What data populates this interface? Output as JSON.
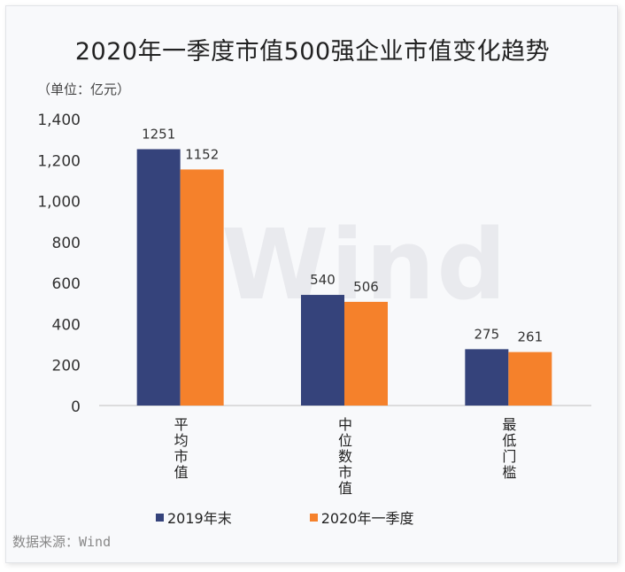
{
  "chart_data": {
    "type": "bar",
    "title": "2020年一季度市值500强企业市值变化趋势",
    "unit_label": "（单位：亿元）",
    "categories": [
      "平均市值",
      "中位数市值",
      "最低门槛"
    ],
    "series": [
      {
        "name": "2019年末",
        "values": [
          1251,
          540,
          275
        ],
        "color": "#35437b"
      },
      {
        "name": "2020年一季度",
        "values": [
          1152,
          506,
          261
        ],
        "color": "#f5812b"
      }
    ],
    "yticks": [
      "0",
      "200",
      "400",
      "600",
      "800",
      "1,000",
      "1,200",
      "1,400"
    ],
    "ylim": [
      0,
      1400
    ],
    "watermark": "Wind"
  },
  "legend": {
    "items": [
      "2019年末",
      "2020年一季度"
    ]
  },
  "source": "数据来源：Wind"
}
